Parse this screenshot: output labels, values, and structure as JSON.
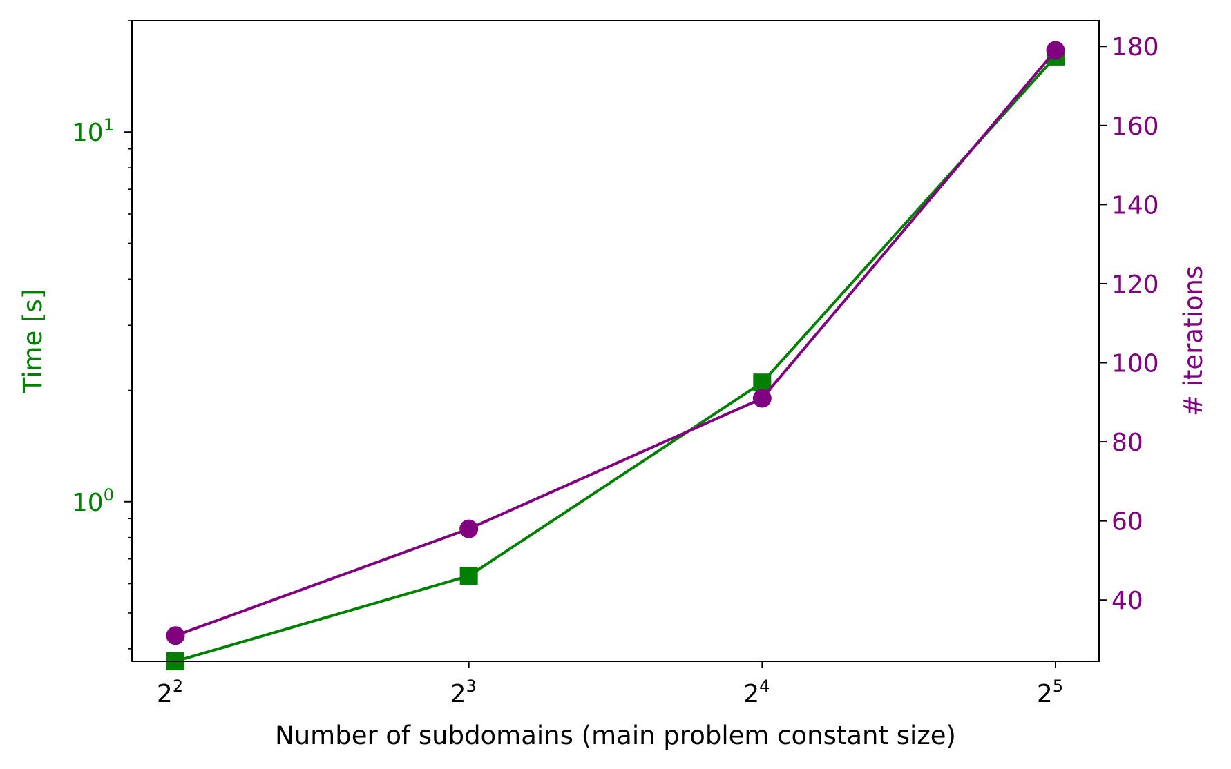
{
  "chart_data": {
    "type": "line",
    "xlabel": "Number of subdomains (main problem constant size)",
    "x": [
      4,
      8,
      16,
      32
    ],
    "x_scale": "log2",
    "x_ticks": [
      {
        "base": "2",
        "exp": "2",
        "value": 4
      },
      {
        "base": "2",
        "exp": "3",
        "value": 8
      },
      {
        "base": "2",
        "exp": "4",
        "value": 16
      },
      {
        "base": "2",
        "exp": "5",
        "value": 32
      }
    ],
    "y_left": {
      "label": "Time [s]",
      "scale": "log",
      "range": [
        0.37,
        20
      ],
      "color": "#008000",
      "major_ticks": [
        {
          "base": "10",
          "exp": "0",
          "value": 1
        },
        {
          "base": "10",
          "exp": "1",
          "value": 10
        }
      ]
    },
    "y_right": {
      "label": "# iterations",
      "scale": "linear",
      "range": [
        24.5,
        186.5
      ],
      "color": "#800080",
      "ticks": [
        40,
        60,
        80,
        100,
        120,
        140,
        160,
        180
      ]
    },
    "series": [
      {
        "axis": "left",
        "marker": "square",
        "color": "#008000",
        "values": [
          0.37,
          0.63,
          2.1,
          16
        ]
      },
      {
        "axis": "right",
        "marker": "circle",
        "color": "#800080",
        "values": [
          31,
          58,
          91,
          179
        ]
      }
    ],
    "grid": false
  }
}
